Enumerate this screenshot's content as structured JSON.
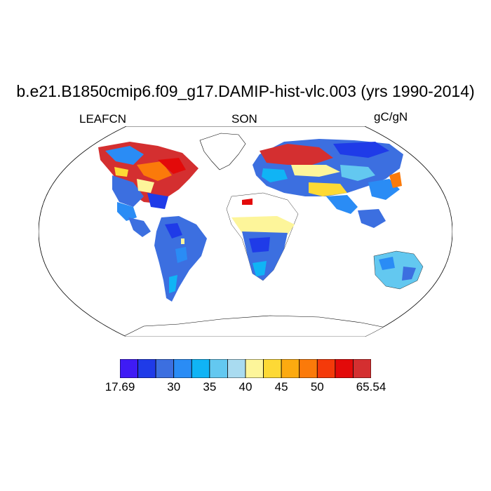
{
  "header": {
    "title": "b.e21.B1850cmip6.f09_g17.DAMIP-hist-vlc.003 (yrs 1990-2014)",
    "variable": "LEAFCN",
    "season": "SON",
    "units": "gC/gN"
  },
  "colorbar": {
    "colors": [
      "#3f1bf5",
      "#1f3be8",
      "#3c6fe0",
      "#2a8cf5",
      "#10b4f5",
      "#63c8f0",
      "#a9dbf0",
      "#fdf59a",
      "#fdd935",
      "#fcaa10",
      "#fb7a0a",
      "#f43a0a",
      "#e30a0a",
      "#d42f30"
    ],
    "labels": [
      {
        "text": "17.69",
        "index": 0
      },
      {
        "text": "30",
        "index": 3
      },
      {
        "text": "35",
        "index": 5
      },
      {
        "text": "40",
        "index": 7
      },
      {
        "text": "45",
        "index": 9
      },
      {
        "text": "50",
        "index": 11
      },
      {
        "text": "65.54",
        "index": 14
      }
    ]
  }
}
